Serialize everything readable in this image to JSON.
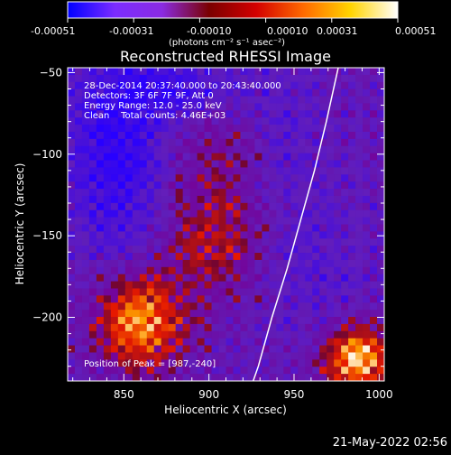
{
  "colorbar": {
    "tick_labels": [
      "-0.00051",
      "-0.00031",
      "-0.00010",
      "0.00010",
      "0.00031",
      "0.00051"
    ],
    "units": "(photons cm⁻² s⁻¹ asec⁻²)",
    "colors": [
      "#0000ff",
      "#7b2cff",
      "#8a2be2",
      "#7a0000",
      "#d40000",
      "#ff6a00",
      "#ffd400",
      "#ffffff"
    ]
  },
  "annotations": {
    "time": "28-Dec-2014 20:37:40.000 to 20:43:40.000",
    "detectors": "Detectors: 3F 6F 7F 9F, Att 0",
    "energy": "Energy Range: 12.0 - 25.0 keV",
    "clean": "Clean    Total counts: 4.46E+03",
    "peak": "Position of Peak = [987,-240]"
  },
  "footer": {
    "timestamp": "21-May-2022 02:56"
  },
  "chart_data": {
    "type": "heatmap",
    "title": "Reconstructed RHESSI Image",
    "xlabel": "Heliocentric X (arcsec)",
    "ylabel": "Heliocentric Y (arcsec)",
    "xlim": [
      817,
      1003
    ],
    "ylim": [
      -239,
      -47
    ],
    "x_ticks": [
      850,
      900,
      950,
      1000
    ],
    "y_ticks": [
      -50,
      -100,
      -150,
      -200
    ],
    "peak_position": [
      987,
      -240
    ],
    "solar_limb": [
      [
        976,
        -47
      ],
      [
        969,
        -80
      ],
      [
        962,
        -110
      ],
      [
        954,
        -140
      ],
      [
        946,
        -170
      ],
      [
        937,
        -200
      ],
      [
        929,
        -230
      ],
      [
        926,
        -239
      ]
    ],
    "blobs": [
      {
        "x": 860,
        "y": -203,
        "sx": 18,
        "sy": 20,
        "amp": 1.05
      },
      {
        "x": 988,
        "y": -226,
        "sx": 15,
        "sy": 14,
        "amp": 1.15
      },
      {
        "x": 903,
        "y": -152,
        "sx": 20,
        "sy": 24,
        "amp": 0.55
      },
      {
        "x": 915,
        "y": -95,
        "sx": 26,
        "sy": 20,
        "amp": 0.35
      },
      {
        "x": 845,
        "y": -100,
        "sx": 20,
        "sy": 40,
        "amp": -0.6
      },
      {
        "x": 880,
        "y": -60,
        "sx": 25,
        "sy": 15,
        "amp": -0.45
      },
      {
        "x": 940,
        "y": -90,
        "sx": 18,
        "sy": 25,
        "amp": -0.35
      },
      {
        "x": 960,
        "y": -165,
        "sx": 22,
        "sy": 30,
        "amp": -0.2
      }
    ]
  }
}
